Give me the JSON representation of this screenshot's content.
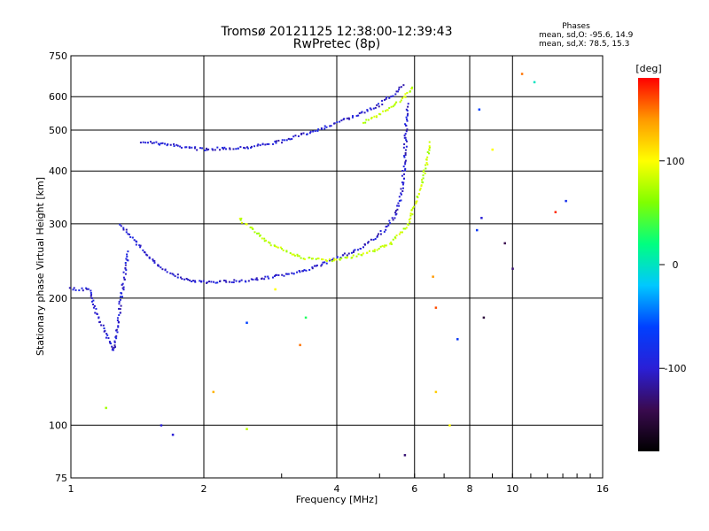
{
  "chart_data": {
    "type": "scatter",
    "title": "Tromsø 20121125 12:38:00-12:39:43",
    "subtitle": "RwPretec (8p)",
    "xlabel": "Frequency [MHz]",
    "ylabel": "Stationary phase Virtual Height [km]",
    "x_scale": "log",
    "y_scale": "log",
    "xlim": [
      1,
      16
    ],
    "ylim": [
      75,
      750
    ],
    "x_ticks": [
      1,
      2,
      4,
      6,
      8,
      10,
      16
    ],
    "x_tick_labels": [
      "1",
      "2",
      "4",
      "6",
      "8",
      "10",
      "16"
    ],
    "y_ticks": [
      75,
      100,
      200,
      300,
      400,
      500,
      600,
      750
    ],
    "y_tick_labels": [
      "75",
      "100",
      "200",
      "300",
      "400",
      "500",
      "600",
      "750"
    ],
    "grid": true,
    "phases_box": {
      "heading": "Phases",
      "line_o": "mean, sd,O:  -95.6, 14.9",
      "line_x": "mean, sd,X:  78.5, 15.3"
    },
    "colorbar": {
      "label": "[deg]",
      "range": [
        -180,
        180
      ],
      "ticks": [
        100,
        0,
        -100
      ],
      "tick_labels": [
        "100",
        "0",
        "-100"
      ],
      "colormap": [
        "#000000",
        "#3a0a4f",
        "#2a1fd6",
        "#0040ff",
        "#00c8ff",
        "#00ff80",
        "#80ff00",
        "#ffff00",
        "#ff9900",
        "#ff0000"
      ]
    },
    "traces": [
      {
        "name_hint": "O-mode F2 upper",
        "phase": -100,
        "x_range": [
          1.45,
          5.85
        ],
        "points": [
          [
            1.45,
            470
          ],
          [
            1.7,
            460
          ],
          [
            2.0,
            450
          ],
          [
            2.5,
            455
          ],
          [
            3.0,
            470
          ],
          [
            3.5,
            495
          ],
          [
            4.0,
            520
          ],
          [
            4.5,
            545
          ],
          [
            5.0,
            575
          ],
          [
            5.4,
            610
          ],
          [
            5.7,
            640
          ]
        ]
      },
      {
        "name_hint": "O-mode F1 lower",
        "phase": -100,
        "x_range": [
          1.3,
          5.8
        ],
        "points": [
          [
            1.3,
            300
          ],
          [
            1.45,
            260
          ],
          [
            1.6,
            235
          ],
          [
            1.8,
            222
          ],
          [
            2.0,
            218
          ],
          [
            2.5,
            220
          ],
          [
            3.0,
            226
          ],
          [
            3.5,
            235
          ],
          [
            4.0,
            248
          ],
          [
            4.5,
            262
          ],
          [
            5.0,
            282
          ],
          [
            5.4,
            310
          ],
          [
            5.6,
            350
          ],
          [
            5.7,
            420
          ],
          [
            5.75,
            520
          ],
          [
            5.8,
            580
          ]
        ]
      },
      {
        "name_hint": "O-mode E region",
        "phase": -100,
        "x_range": [
          1.0,
          1.35
        ],
        "points": [
          [
            1.0,
            210
          ],
          [
            1.1,
            210
          ],
          [
            1.15,
            180
          ],
          [
            1.2,
            165
          ],
          [
            1.25,
            150
          ],
          [
            1.3,
            200
          ],
          [
            1.35,
            260
          ]
        ]
      },
      {
        "name_hint": "X-mode lower",
        "phase": 80,
        "x_range": [
          2.4,
          6.5
        ],
        "points": [
          [
            2.4,
            310
          ],
          [
            2.8,
            270
          ],
          [
            3.3,
            250
          ],
          [
            3.8,
            245
          ],
          [
            4.3,
            250
          ],
          [
            4.8,
            258
          ],
          [
            5.3,
            270
          ],
          [
            5.8,
            300
          ],
          [
            6.0,
            330
          ],
          [
            6.2,
            370
          ],
          [
            6.4,
            420
          ],
          [
            6.5,
            470
          ]
        ]
      },
      {
        "name_hint": "X-mode upper",
        "phase": 80,
        "x_range": [
          4.6,
          6.0
        ],
        "points": [
          [
            4.6,
            520
          ],
          [
            5.0,
            545
          ],
          [
            5.4,
            575
          ],
          [
            5.8,
            610
          ],
          [
            6.0,
            640
          ]
        ]
      }
    ],
    "scattered_points": [
      {
        "x": 10.5,
        "y": 680,
        "phase": 150
      },
      {
        "x": 11.2,
        "y": 650,
        "phase": 0
      },
      {
        "x": 8.4,
        "y": 560,
        "phase": -60
      },
      {
        "x": 9.0,
        "y": 450,
        "phase": 100
      },
      {
        "x": 8.5,
        "y": 310,
        "phase": -100
      },
      {
        "x": 8.3,
        "y": 290,
        "phase": -70
      },
      {
        "x": 9.6,
        "y": 270,
        "phase": -140
      },
      {
        "x": 10.0,
        "y": 235,
        "phase": -130
      },
      {
        "x": 12.5,
        "y": 320,
        "phase": 170
      },
      {
        "x": 13.2,
        "y": 340,
        "phase": -80
      },
      {
        "x": 8.6,
        "y": 180,
        "phase": -150
      },
      {
        "x": 7.5,
        "y": 160,
        "phase": -70
      },
      {
        "x": 6.6,
        "y": 225,
        "phase": 140
      },
      {
        "x": 6.7,
        "y": 190,
        "phase": 160
      },
      {
        "x": 6.7,
        "y": 120,
        "phase": 120
      },
      {
        "x": 7.2,
        "y": 100,
        "phase": 100
      },
      {
        "x": 5.7,
        "y": 85,
        "phase": -130
      },
      {
        "x": 2.9,
        "y": 210,
        "phase": 100
      },
      {
        "x": 3.3,
        "y": 155,
        "phase": 150
      },
      {
        "x": 3.4,
        "y": 180,
        "phase": 30
      },
      {
        "x": 2.5,
        "y": 175,
        "phase": -60
      },
      {
        "x": 2.1,
        "y": 120,
        "phase": 130
      },
      {
        "x": 2.5,
        "y": 98,
        "phase": 80
      },
      {
        "x": 1.6,
        "y": 100,
        "phase": -100
      },
      {
        "x": 1.7,
        "y": 95,
        "phase": -100
      },
      {
        "x": 1.2,
        "y": 110,
        "phase": 70
      }
    ]
  }
}
